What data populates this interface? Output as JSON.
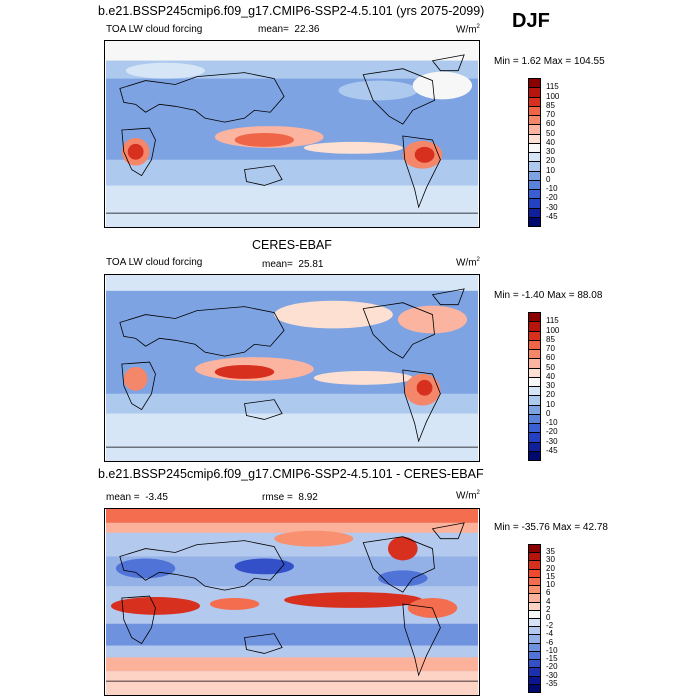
{
  "header": {
    "title": "b.e21.BSSP245cmip6.f09_g17.CMIP6-SSP2-4.5.101 (yrs 2075-2099)",
    "season": "DJF"
  },
  "panels": [
    {
      "variable": "TOA LW cloud forcing",
      "stat_label": "mean=",
      "stat_value": "22.36",
      "units": "W/m",
      "units_sup": "2",
      "minmax": "Min =  1.62 Max = 104.55",
      "colorbar_labels": [
        "115",
        "100",
        "85",
        "70",
        "60",
        "50",
        "40",
        "30",
        "20",
        "10",
        "0",
        "-10",
        "-20",
        "-30",
        "-45"
      ],
      "colors": [
        "#8b0000",
        "#b5150c",
        "#d7301f",
        "#ef6548",
        "#f4876a",
        "#fbb4a0",
        "#fde0d2",
        "#f7f7f7",
        "#d6e6f7",
        "#adc9ee",
        "#7ea3e3",
        "#5a82db",
        "#3a5fd4",
        "#2440c3",
        "#10209a",
        "#000a6e"
      ]
    },
    {
      "title": "CERES-EBAF",
      "variable": "TOA LW cloud forcing",
      "stat_label": "mean=",
      "stat_value": "25.81",
      "units": "W/m",
      "units_sup": "2",
      "minmax": "Min =  -1.40 Max =  88.08",
      "colorbar_labels": [
        "115",
        "100",
        "85",
        "70",
        "60",
        "50",
        "40",
        "30",
        "20",
        "10",
        "0",
        "-10",
        "-20",
        "-30",
        "-45"
      ],
      "colors": [
        "#8b0000",
        "#b5150c",
        "#d7301f",
        "#ef6548",
        "#f4876a",
        "#fbb4a0",
        "#fde0d2",
        "#f7f7f7",
        "#d6e6f7",
        "#adc9ee",
        "#7ea3e3",
        "#5a82db",
        "#3a5fd4",
        "#2440c3",
        "#10209a",
        "#000a6e"
      ]
    },
    {
      "title": "b.e21.BSSP245cmip6.f09_g17.CMIP6-SSP2-4.5.101 - CERES-EBAF",
      "stat_label": "mean =",
      "stat_value": "-3.45",
      "stat2_label": "rmse =",
      "stat2_value": "8.92",
      "units": "W/m",
      "units_sup": "2",
      "minmax": "Min = -35.76 Max =  42.78",
      "colorbar_labels": [
        "35",
        "30",
        "20",
        "15",
        "10",
        "6",
        "4",
        "2",
        "0",
        "-2",
        "-4",
        "-6",
        "-10",
        "-15",
        "-20",
        "-30",
        "-35"
      ],
      "colors": [
        "#8b0000",
        "#b5150c",
        "#d7301f",
        "#ef4a30",
        "#f46d4e",
        "#f9906f",
        "#fbb19a",
        "#fdd3c5",
        "#f7f7f7",
        "#d6e2f5",
        "#b4c9ee",
        "#93b0e7",
        "#6f92de",
        "#4f73d6",
        "#3350c8",
        "#1d30b0",
        "#0a1590",
        "#000a6e"
      ]
    }
  ]
}
